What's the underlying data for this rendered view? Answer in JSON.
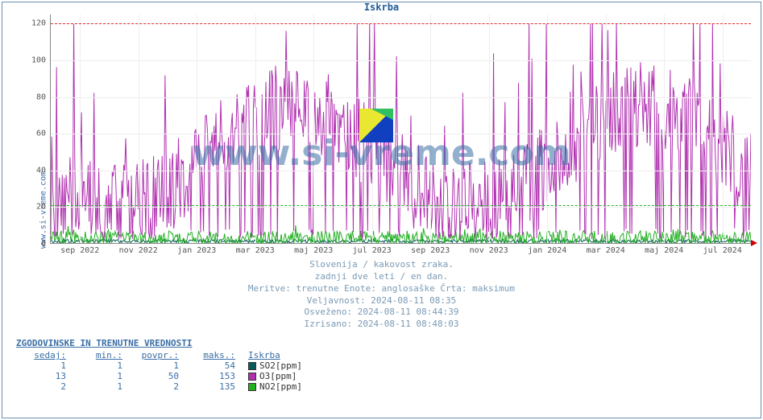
{
  "title": "Iskrba",
  "ylabel": "www.si-vreme.com",
  "watermark": "www.si-vreme.com",
  "chart": {
    "ylim": [
      0,
      125
    ],
    "ytick_step": 20,
    "yticks": [
      0,
      20,
      40,
      60,
      80,
      100,
      120
    ],
    "xlabels": [
      "sep 2022",
      "nov 2022",
      "jan 2023",
      "mar 2023",
      "maj 2023",
      "jul 2023",
      "sep 2023",
      "nov 2023",
      "jan 2024",
      "mar 2024",
      "maj 2024",
      "jul 2024"
    ],
    "dash_red_y": 120,
    "dash_green_y": 21,
    "grid_color": "#eeeeee",
    "background_color": "#ffffff",
    "n_points": 730,
    "series": {
      "O3": {
        "color": "#b030b0",
        "mean": 42,
        "amp": 55,
        "noise": 24,
        "min": 2,
        "max": 120
      },
      "NO2": {
        "color": "#20b020",
        "mean": 3,
        "amp": 3,
        "noise": 4,
        "min": 0,
        "max": 22
      },
      "SO2": {
        "color": "#0a5a5a",
        "mean": 1,
        "amp": 0,
        "noise": 1,
        "min": 0,
        "max": 4
      }
    }
  },
  "caption": {
    "l1": "Slovenija / kakovost zraka.",
    "l2": "zadnji dve leti / en dan.",
    "l3": "Meritve: trenutne  Enote: anglosaške  Črta: maksimum",
    "l4": "Veljavnost: 2024-08-11 08:35",
    "l5": "Osveženo: 2024-08-11 08:44:39",
    "l6": "Izrisano: 2024-08-11 08:48:03"
  },
  "legend": {
    "header": "ZGODOVINSKE IN TRENUTNE VREDNOSTI",
    "cols": [
      "sedaj:",
      "min.:",
      "povpr.:",
      "maks.:",
      "Iskrba"
    ],
    "rows": [
      {
        "now": "1",
        "min": "1",
        "avg": "1",
        "max": "54",
        "swatch": "#0a5a5a",
        "name": "SO2[ppm]"
      },
      {
        "now": "13",
        "min": "1",
        "avg": "50",
        "max": "153",
        "swatch": "#b030b0",
        "name": "O3[ppm]"
      },
      {
        "now": "2",
        "min": "1",
        "avg": "2",
        "max": "135",
        "swatch": "#20b020",
        "name": "NO2[ppm]"
      }
    ]
  }
}
